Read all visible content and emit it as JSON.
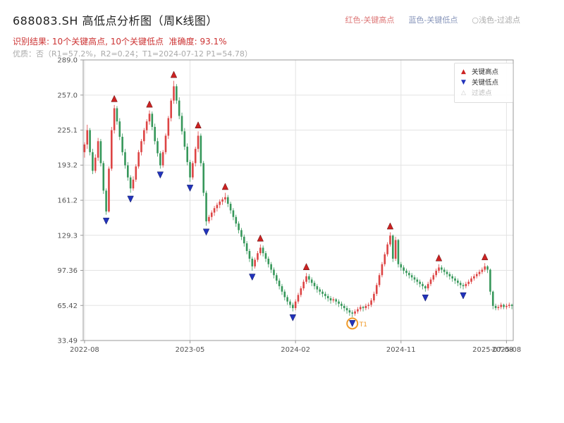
{
  "header": {
    "title": "688083.SH 高低点分析图（周K线图）",
    "legend": [
      {
        "label": "红色-关键高点",
        "color": "#dd7777"
      },
      {
        "label": "蓝色-关键低点",
        "color": "#8896bb"
      },
      {
        "label": "○浅色-过滤点",
        "color": "#aaaaaa"
      }
    ],
    "result_line": "识别结果: 10个关键高点, 10个关键低点  准确度: 93.1%",
    "quality_line": "优质：否（R1=57.2%，R2=0.24；T1=2024-07-12 P1=54.78）"
  },
  "chart_legend": {
    "high": "关键高点",
    "low": "关键低点",
    "filtered": "过滤点"
  },
  "icons": {
    "key_high": "▲",
    "key_low": "▼",
    "filtered": "△"
  },
  "chart_data": {
    "type": "candlestick",
    "title": "688083.SH 高低点分析图（周K线图）",
    "ylim": [
      33.49,
      289.0
    ],
    "y_ticks": [
      {
        "v": 289.0,
        "label": "289.0"
      },
      {
        "v": 257.0,
        "label": "257.0"
      },
      {
        "v": 225.1,
        "label": "225.1"
      },
      {
        "v": 193.2,
        "label": "193.2"
      },
      {
        "v": 161.2,
        "label": "161.2"
      },
      {
        "v": 129.3,
        "label": "129.3"
      },
      {
        "v": 97.36,
        "label": "97.36"
      },
      {
        "v": 65.42,
        "label": "65.42"
      },
      {
        "v": 33.49,
        "label": "33.49"
      }
    ],
    "x_ticks": [
      {
        "i": 0,
        "label": "2022-08"
      },
      {
        "i": 39,
        "label": "2023-05"
      },
      {
        "i": 78,
        "label": "2024-02"
      },
      {
        "i": 117,
        "label": "2024-11"
      },
      {
        "i": 156,
        "label": "2025-08"
      }
    ],
    "x_overlap": {
      "i": 151,
      "label": "2025-07-08"
    },
    "colors": {
      "up": "#dd4444",
      "down": "#36975a",
      "high_marker": "#cc2222",
      "low_marker": "#2233bb",
      "t1": "#f09a28",
      "grid": "#e3e3e3",
      "frame": "#999999",
      "tick_text": "#555555"
    },
    "key_high_indices": [
      11,
      24,
      33,
      42,
      52,
      65,
      82,
      113,
      131,
      148
    ],
    "key_low_indices": [
      8,
      17,
      28,
      39,
      45,
      62,
      77,
      99,
      126,
      140
    ],
    "t1": {
      "index": 99,
      "label": "T1",
      "price": 54.78
    },
    "candles": [
      [
        205,
        214,
        200,
        212
      ],
      [
        212,
        230,
        208,
        225
      ],
      [
        225,
        227,
        202,
        205
      ],
      [
        205,
        208,
        185,
        188
      ],
      [
        188,
        203,
        186,
        200
      ],
      [
        200,
        218,
        197,
        215
      ],
      [
        215,
        217,
        192,
        195
      ],
      [
        195,
        197,
        167,
        170
      ],
      [
        170,
        172,
        148,
        151
      ],
      [
        151,
        192,
        150,
        190
      ],
      [
        190,
        228,
        188,
        225
      ],
      [
        225,
        248,
        222,
        245
      ],
      [
        245,
        247,
        230,
        233
      ],
      [
        233,
        236,
        216,
        219
      ],
      [
        219,
        222,
        202,
        205
      ],
      [
        205,
        208,
        190,
        193
      ],
      [
        193,
        196,
        179,
        182
      ],
      [
        182,
        184,
        168,
        172
      ],
      [
        172,
        183,
        170,
        180
      ],
      [
        180,
        194,
        178,
        192
      ],
      [
        192,
        207,
        190,
        205
      ],
      [
        205,
        217,
        202,
        215
      ],
      [
        215,
        227,
        212,
        225
      ],
      [
        225,
        235,
        222,
        233
      ],
      [
        233,
        243,
        230,
        240
      ],
      [
        240,
        242,
        225,
        228
      ],
      [
        228,
        231,
        212,
        215
      ],
      [
        215,
        218,
        201,
        204
      ],
      [
        204,
        206,
        190,
        193
      ],
      [
        193,
        207,
        191,
        205
      ],
      [
        205,
        222,
        203,
        220
      ],
      [
        220,
        238,
        217,
        236
      ],
      [
        236,
        254,
        233,
        252
      ],
      [
        252,
        270,
        249,
        265
      ],
      [
        265,
        267,
        249,
        252
      ],
      [
        252,
        255,
        235,
        238
      ],
      [
        238,
        241,
        221,
        224
      ],
      [
        224,
        227,
        207,
        210
      ],
      [
        210,
        213,
        193,
        196
      ],
      [
        196,
        198,
        178,
        182
      ],
      [
        182,
        197,
        180,
        195
      ],
      [
        195,
        210,
        192,
        208
      ],
      [
        208,
        224,
        205,
        220
      ],
      [
        220,
        222,
        192,
        195
      ],
      [
        195,
        197,
        165,
        168
      ],
      [
        168,
        170,
        138,
        142
      ],
      [
        142,
        148,
        140,
        146
      ],
      [
        146,
        152,
        143,
        150
      ],
      [
        150,
        156,
        147,
        154
      ],
      [
        154,
        159,
        151,
        157
      ],
      [
        157,
        162,
        154,
        160
      ],
      [
        160,
        164,
        157,
        162
      ],
      [
        162,
        168,
        159,
        164
      ],
      [
        164,
        166,
        155,
        158
      ],
      [
        158,
        160,
        149,
        152
      ],
      [
        152,
        154,
        143,
        146
      ],
      [
        146,
        148,
        137,
        140
      ],
      [
        140,
        142,
        131,
        134
      ],
      [
        134,
        136,
        125,
        128
      ],
      [
        128,
        130,
        119,
        122
      ],
      [
        122,
        124,
        112,
        115
      ],
      [
        115,
        117,
        105,
        108
      ],
      [
        108,
        110,
        97,
        101
      ],
      [
        101,
        109,
        99,
        107
      ],
      [
        107,
        115,
        105,
        113
      ],
      [
        113,
        121,
        111,
        118
      ],
      [
        118,
        120,
        110,
        113
      ],
      [
        113,
        115,
        105,
        108
      ],
      [
        108,
        110,
        100,
        103
      ],
      [
        103,
        105,
        95,
        98
      ],
      [
        98,
        100,
        90,
        93
      ],
      [
        93,
        95,
        85,
        88
      ],
      [
        88,
        90,
        80,
        83
      ],
      [
        83,
        85,
        75,
        78
      ],
      [
        78,
        80,
        70,
        73
      ],
      [
        73,
        75,
        66,
        69
      ],
      [
        69,
        71,
        63,
        66
      ],
      [
        66,
        68,
        60,
        63
      ],
      [
        63,
        71,
        61,
        69
      ],
      [
        69,
        77,
        67,
        75
      ],
      [
        75,
        83,
        73,
        81
      ],
      [
        81,
        89,
        79,
        87
      ],
      [
        87,
        95,
        85,
        92
      ],
      [
        92,
        94,
        86,
        89
      ],
      [
        89,
        91,
        83,
        86
      ],
      [
        86,
        88,
        80,
        83
      ],
      [
        83,
        85,
        77,
        80
      ],
      [
        80,
        82,
        75,
        78
      ],
      [
        78,
        80,
        73,
        76
      ],
      [
        76,
        78,
        71,
        74
      ],
      [
        74,
        76,
        69,
        72
      ],
      [
        72,
        74,
        67,
        70
      ],
      [
        70,
        73,
        68,
        71
      ],
      [
        71,
        72,
        66,
        69
      ],
      [
        69,
        71,
        64,
        67
      ],
      [
        67,
        69,
        62,
        65
      ],
      [
        65,
        67,
        60,
        63
      ],
      [
        63,
        65,
        58,
        61
      ],
      [
        61,
        63,
        56,
        59
      ],
      [
        59,
        61,
        54.78,
        58
      ],
      [
        58,
        62,
        56,
        60
      ],
      [
        60,
        64,
        58,
        62
      ],
      [
        62,
        66,
        60,
        64
      ],
      [
        64,
        65,
        60,
        63
      ],
      [
        63,
        67,
        61,
        65
      ],
      [
        65,
        68,
        62,
        66
      ],
      [
        66,
        72,
        64,
        70
      ],
      [
        70,
        78,
        68,
        76
      ],
      [
        76,
        86,
        74,
        84
      ],
      [
        84,
        95,
        82,
        93
      ],
      [
        93,
        105,
        91,
        103
      ],
      [
        103,
        114,
        101,
        112
      ],
      [
        112,
        123,
        110,
        121
      ],
      [
        121,
        132,
        119,
        129
      ],
      [
        129,
        130,
        105,
        108
      ],
      [
        108,
        128,
        106,
        125
      ],
      [
        125,
        126,
        100,
        103
      ],
      [
        103,
        105,
        97,
        100
      ],
      [
        100,
        102,
        94,
        97
      ],
      [
        97,
        99,
        92,
        95
      ],
      [
        95,
        97,
        90,
        93
      ],
      [
        93,
        95,
        88,
        91
      ],
      [
        91,
        93,
        86,
        89
      ],
      [
        89,
        91,
        84,
        87
      ],
      [
        87,
        89,
        82,
        85
      ],
      [
        85,
        87,
        80,
        83
      ],
      [
        83,
        84,
        78,
        81
      ],
      [
        81,
        87,
        79,
        85
      ],
      [
        85,
        91,
        83,
        89
      ],
      [
        89,
        95,
        87,
        93
      ],
      [
        93,
        99,
        91,
        97
      ],
      [
        97,
        103,
        95,
        100
      ],
      [
        100,
        102,
        95,
        98
      ],
      [
        98,
        100,
        93,
        96
      ],
      [
        96,
        98,
        91,
        94
      ],
      [
        94,
        96,
        89,
        92
      ],
      [
        92,
        94,
        87,
        90
      ],
      [
        90,
        92,
        85,
        88
      ],
      [
        88,
        90,
        83,
        86
      ],
      [
        86,
        88,
        81,
        84
      ],
      [
        84,
        86,
        80,
        83
      ],
      [
        83,
        87,
        81,
        85
      ],
      [
        85,
        89,
        83,
        87
      ],
      [
        87,
        92,
        85,
        90
      ],
      [
        90,
        94,
        88,
        92
      ],
      [
        92,
        96,
        90,
        94
      ],
      [
        94,
        98,
        92,
        96
      ],
      [
        96,
        100,
        94,
        98
      ],
      [
        98,
        104,
        96,
        101
      ],
      [
        101,
        102,
        95,
        98
      ],
      [
        98,
        99,
        75,
        78
      ],
      [
        78,
        79,
        62,
        65
      ],
      [
        65,
        67,
        61,
        63
      ],
      [
        63,
        66,
        61,
        64
      ],
      [
        64,
        68,
        62,
        66
      ],
      [
        66,
        67,
        62,
        64
      ],
      [
        64,
        67,
        62,
        65
      ],
      [
        65,
        68,
        63,
        66
      ],
      [
        66,
        67,
        62,
        65
      ]
    ]
  }
}
